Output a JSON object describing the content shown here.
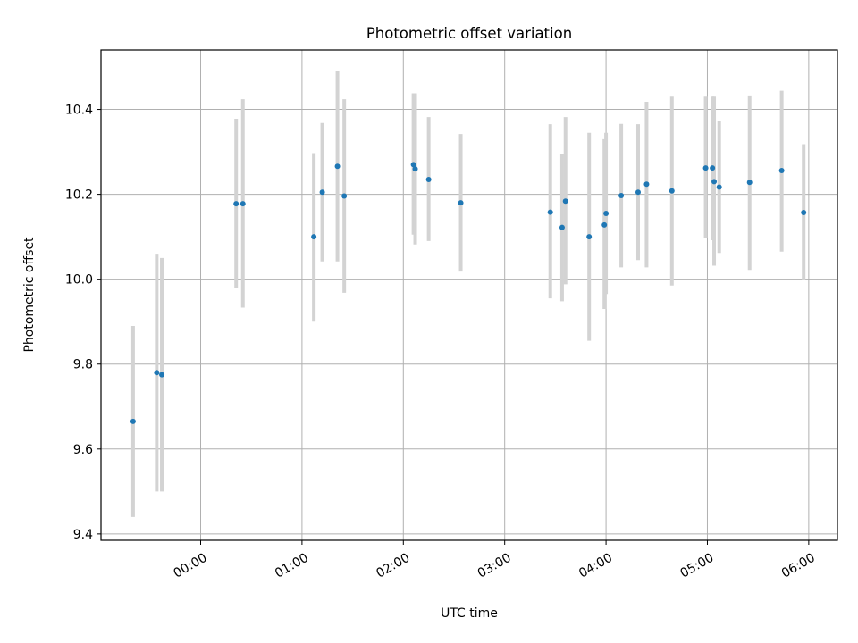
{
  "chart_data": {
    "type": "scatter",
    "title": "Photometric offset variation",
    "xlabel": "UTC time",
    "ylabel": "Photometric offset",
    "xlim": [
      "-00:59",
      "06:17"
    ],
    "ylim": [
      9.385,
      10.54
    ],
    "x_ticks": [
      "00:00",
      "01:00",
      "02:00",
      "03:00",
      "04:00",
      "05:00",
      "06:00"
    ],
    "y_ticks": [
      "9.4",
      "9.6",
      "9.8",
      "10.0",
      "10.2",
      "10.4"
    ],
    "grid": true,
    "marker_color": "#1f77b4",
    "errorbar_color": "#d3d3d3",
    "series": [
      {
        "points": [
          {
            "x": "-00:40",
            "y": 9.665,
            "ylow": 9.44,
            "yhigh": 9.89
          },
          {
            "x": "-00:26",
            "y": 9.78,
            "ylow": 9.5,
            "yhigh": 10.06
          },
          {
            "x": "-00:23",
            "y": 9.775,
            "ylow": 9.5,
            "yhigh": 10.05
          },
          {
            "x": "00:21",
            "y": 10.178,
            "ylow": 9.98,
            "yhigh": 10.378
          },
          {
            "x": "00:25",
            "y": 10.178,
            "ylow": 9.933,
            "yhigh": 10.424
          },
          {
            "x": "01:07",
            "y": 10.1,
            "ylow": 9.9,
            "yhigh": 10.297
          },
          {
            "x": "01:12",
            "y": 10.205,
            "ylow": 10.042,
            "yhigh": 10.368
          },
          {
            "x": "01:21",
            "y": 10.266,
            "ylow": 10.042,
            "yhigh": 10.49
          },
          {
            "x": "01:25",
            "y": 10.196,
            "ylow": 9.968,
            "yhigh": 10.424
          },
          {
            "x": "02:06",
            "y": 10.27,
            "ylow": 10.105,
            "yhigh": 10.438
          },
          {
            "x": "02:07",
            "y": 10.26,
            "ylow": 10.082,
            "yhigh": 10.438
          },
          {
            "x": "02:15",
            "y": 10.235,
            "ylow": 10.09,
            "yhigh": 10.382
          },
          {
            "x": "02:34",
            "y": 10.18,
            "ylow": 10.018,
            "yhigh": 10.342
          },
          {
            "x": "03:27",
            "y": 10.158,
            "ylow": 9.955,
            "yhigh": 10.365
          },
          {
            "x": "03:34",
            "y": 10.122,
            "ylow": 9.948,
            "yhigh": 10.296
          },
          {
            "x": "03:36",
            "y": 10.184,
            "ylow": 9.988,
            "yhigh": 10.382
          },
          {
            "x": "03:50",
            "y": 10.1,
            "ylow": 9.855,
            "yhigh": 10.345
          },
          {
            "x": "03:59",
            "y": 10.128,
            "ylow": 9.93,
            "yhigh": 10.33
          },
          {
            "x": "04:00",
            "y": 10.155,
            "ylow": 9.965,
            "yhigh": 10.345
          },
          {
            "x": "04:09",
            "y": 10.197,
            "ylow": 10.028,
            "yhigh": 10.366
          },
          {
            "x": "04:19",
            "y": 10.205,
            "ylow": 10.045,
            "yhigh": 10.365
          },
          {
            "x": "04:24",
            "y": 10.224,
            "ylow": 10.028,
            "yhigh": 10.418
          },
          {
            "x": "04:39",
            "y": 10.208,
            "ylow": 9.985,
            "yhigh": 10.43
          },
          {
            "x": "04:59",
            "y": 10.262,
            "ylow": 10.098,
            "yhigh": 10.43
          },
          {
            "x": "05:03",
            "y": 10.262,
            "ylow": 10.092,
            "yhigh": 10.43
          },
          {
            "x": "05:04",
            "y": 10.23,
            "ylow": 10.032,
            "yhigh": 10.43
          },
          {
            "x": "05:07",
            "y": 10.217,
            "ylow": 10.062,
            "yhigh": 10.372
          },
          {
            "x": "05:25",
            "y": 10.228,
            "ylow": 10.022,
            "yhigh": 10.433
          },
          {
            "x": "05:44",
            "y": 10.256,
            "ylow": 10.065,
            "yhigh": 10.444
          },
          {
            "x": "05:57",
            "y": 10.157,
            "ylow": 9.998,
            "yhigh": 10.318
          }
        ]
      }
    ]
  }
}
